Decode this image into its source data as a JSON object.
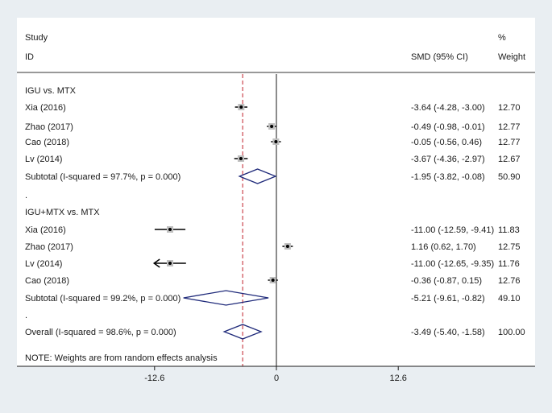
{
  "chart_data": {
    "type": "forest",
    "headers": {
      "study_line1": "Study",
      "study_line2": "ID",
      "smd": "SMD (95% CI)",
      "weight_line1": "%",
      "weight_line2": "Weight"
    },
    "x_ticks": [
      {
        "value": -12.6,
        "label": "-12.6"
      },
      {
        "value": 0,
        "label": "0"
      },
      {
        "value": 12.6,
        "label": "12.6"
      }
    ],
    "xlim": [
      -18.5,
      18.5
    ],
    "overall_line": -3.49,
    "rows": [
      {
        "kind": "group",
        "label": "IGU vs. MTX"
      },
      {
        "kind": "study",
        "label": "Xia (2016)",
        "est": -3.64,
        "lo": -4.28,
        "hi": -3.0,
        "ci": "-3.64 (-4.28, -3.00)",
        "weight": "12.70"
      },
      {
        "kind": "study",
        "label": "Zhao (2017)",
        "est": -0.49,
        "lo": -0.98,
        "hi": -0.01,
        "ci": "-0.49 (-0.98, -0.01)",
        "weight": "12.77"
      },
      {
        "kind": "study",
        "label": "Cao (2018)",
        "est": -0.05,
        "lo": -0.56,
        "hi": 0.46,
        "ci": "-0.05 (-0.56, 0.46)",
        "weight": "12.77"
      },
      {
        "kind": "study",
        "label": "Lv (2014)",
        "est": -3.67,
        "lo": -4.36,
        "hi": -2.97,
        "ci": "-3.67 (-4.36, -2.97)",
        "weight": "12.67"
      },
      {
        "kind": "subtotal",
        "label": "Subtotal  (I-squared = 97.7%, p = 0.000)",
        "est": -1.95,
        "lo": -3.82,
        "hi": -0.08,
        "ci": "-1.95 (-3.82, -0.08)",
        "weight": "50.90"
      },
      {
        "kind": "spacer",
        "label": "."
      },
      {
        "kind": "group",
        "label": "IGU+MTX vs. MTX"
      },
      {
        "kind": "study",
        "label": "Xia (2016)",
        "est": -11.0,
        "lo": -12.59,
        "hi": -9.41,
        "ci": "-11.00 (-12.59, -9.41)",
        "weight": "11.83"
      },
      {
        "kind": "study",
        "label": "Zhao (2017)",
        "est": 1.16,
        "lo": 0.62,
        "hi": 1.7,
        "ci": "1.16 (0.62, 1.70)",
        "weight": "12.75"
      },
      {
        "kind": "study",
        "label": "Lv (2014)",
        "est": -11.0,
        "lo": -12.65,
        "hi": -9.35,
        "ci": "-11.00 (-12.65, -9.35)",
        "weight": "11.76",
        "arrow_left": true
      },
      {
        "kind": "study",
        "label": "Cao (2018)",
        "est": -0.36,
        "lo": -0.87,
        "hi": 0.15,
        "ci": "-0.36 (-0.87, 0.15)",
        "weight": "12.76"
      },
      {
        "kind": "subtotal",
        "label": "Subtotal  (I-squared = 99.2%, p = 0.000)",
        "est": -5.21,
        "lo": -9.61,
        "hi": -0.82,
        "ci": "-5.21 (-9.61, -0.82)",
        "weight": "49.10"
      },
      {
        "kind": "spacer",
        "label": "."
      },
      {
        "kind": "overall",
        "label": "Overall  (I-squared = 98.6%, p = 0.000)",
        "est": -3.49,
        "lo": -5.4,
        "hi": -1.58,
        "ci": "-3.49 (-5.40, -1.58)",
        "weight": "100.00"
      }
    ],
    "note": "NOTE: Weights are from random effects analysis",
    "colors": {
      "background": "#e9eef2",
      "panel": "#ffffff",
      "diamond": "#1f2a7a",
      "overall_line": "#c0202a",
      "axis": "#1a1a1a"
    }
  }
}
